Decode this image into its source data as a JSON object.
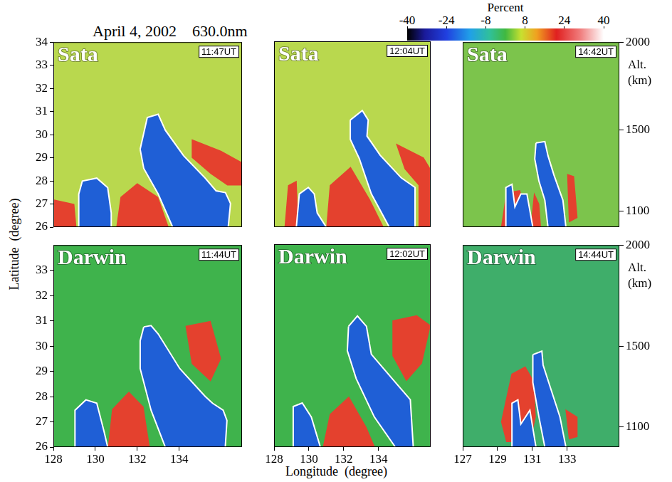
{
  "chart_data": {
    "type": "map",
    "title": "April 4, 2002    630.0nm",
    "x_label": "Longitude  (degree)",
    "y_label": "Latitude  (degree)",
    "y2_label": "Alt. (km)",
    "colorbar": {
      "title": "Percent",
      "range": [
        -40,
        40
      ],
      "ticks": [
        -40,
        -24,
        -8,
        8,
        24,
        40
      ]
    },
    "panels": [
      {
        "title": "Sata",
        "time": "11:47UT",
        "color": "#b9d84e",
        "xlim": [
          128,
          137
        ],
        "ylim": [
          26,
          34
        ],
        "yticks": [
          26,
          27,
          28,
          29,
          30,
          31,
          32,
          33,
          34
        ],
        "contours": [
          [
            [
              132.14,
              29.37
            ],
            [
              132.48,
              30.74
            ],
            [
              133.0,
              30.88
            ],
            [
              133.34,
              30.19
            ],
            [
              134.21,
              29.09
            ],
            [
              135.24,
              28.12
            ],
            [
              135.76,
              27.57
            ],
            [
              136.21,
              27.49
            ],
            [
              136.45,
              27.02
            ],
            [
              136.34,
              26.0
            ],
            [
              133.69,
              26.0
            ],
            [
              133.0,
              27.43
            ],
            [
              132.31,
              28.54
            ]
          ],
          [
            [
              129.21,
              26.0
            ],
            [
              129.21,
              27.43
            ],
            [
              129.38,
              27.99
            ],
            [
              130.07,
              28.12
            ],
            [
              130.59,
              27.71
            ],
            [
              130.76,
              26.61
            ],
            [
              130.76,
              26.0
            ]
          ]
        ],
        "enhancements": [
          [
            [
              131.0,
              26.0
            ],
            [
              131.2,
              27.3
            ],
            [
              132.0,
              27.9
            ],
            [
              133.0,
              27.3
            ],
            [
              133.5,
              26.0
            ]
          ],
          [
            [
              134.6,
              29.8
            ],
            [
              136.0,
              29.3
            ],
            [
              137.0,
              28.8
            ],
            [
              137.0,
              27.8
            ],
            [
              136.3,
              27.8
            ],
            [
              135.5,
              28.3
            ],
            [
              134.6,
              29.0
            ]
          ],
          [
            [
              128.0,
              26.0
            ],
            [
              128.0,
              27.2
            ],
            [
              129.0,
              27.0
            ],
            [
              129.1,
              26.0
            ]
          ]
        ]
      },
      {
        "title": "Sata",
        "time": "12:04UT",
        "color": "#b9d84e",
        "xlim": [
          128,
          137
        ],
        "ylim": [
          26,
          34
        ],
        "contours": [
          [
            [
              132.38,
              30.61
            ],
            [
              133.07,
              31.02
            ],
            [
              133.41,
              30.61
            ],
            [
              133.34,
              29.92
            ],
            [
              134.1,
              29.09
            ],
            [
              135.31,
              28.12
            ],
            [
              136.1,
              27.71
            ],
            [
              136.1,
              26.0
            ],
            [
              134.62,
              26.0
            ],
            [
              133.59,
              27.43
            ],
            [
              132.9,
              28.95
            ],
            [
              132.38,
              29.78
            ]
          ],
          [
            [
              129.28,
              26.0
            ],
            [
              129.45,
              27.43
            ],
            [
              129.97,
              27.71
            ],
            [
              130.31,
              27.43
            ],
            [
              130.48,
              26.61
            ],
            [
              131.0,
              26.0
            ]
          ]
        ],
        "enhancements": [
          [
            [
              131.0,
              26.0
            ],
            [
              131.2,
              27.8
            ],
            [
              132.4,
              28.6
            ],
            [
              133.5,
              27.2
            ],
            [
              134.3,
              26.0
            ]
          ],
          [
            [
              135.0,
              29.6
            ],
            [
              136.6,
              29.0
            ],
            [
              137.0,
              28.5
            ],
            [
              137.0,
              26.0
            ],
            [
              136.3,
              26.0
            ],
            [
              136.3,
              27.8
            ],
            [
              135.5,
              28.5
            ]
          ],
          [
            [
              128.6,
              26.0
            ],
            [
              128.8,
              27.8
            ],
            [
              129.3,
              28.0
            ],
            [
              129.4,
              26.0
            ]
          ]
        ]
      },
      {
        "title": "Sata",
        "time": "14:42UT",
        "color": "#7cc44c",
        "xlim": [
          127,
          136
        ],
        "ylim": [
          26,
          34
        ],
        "alt_ticks": [
          {
            "value": 34,
            "label": "2000"
          },
          {
            "value": 30.2,
            "label": "1500"
          },
          {
            "value": 26.7,
            "label": "1100"
          }
        ],
        "contours": [
          [
            [
              131.21,
              29.64
            ],
            [
              131.72,
              29.7
            ],
            [
              131.9,
              29.09
            ],
            [
              132.24,
              28.26
            ],
            [
              132.76,
              27.16
            ],
            [
              132.93,
              26.0
            ],
            [
              131.9,
              26.0
            ],
            [
              131.72,
              27.16
            ],
            [
              131.38,
              27.99
            ],
            [
              131.14,
              28.95
            ]
          ],
          [
            [
              129.48,
              26.0
            ],
            [
              129.48,
              27.71
            ],
            [
              129.83,
              27.85
            ],
            [
              130.0,
              26.88
            ],
            [
              130.34,
              27.43
            ],
            [
              130.69,
              27.43
            ],
            [
              131.03,
              26.0
            ]
          ]
        ],
        "enhancements": [
          [
            [
              133.0,
              28.3
            ],
            [
              133.4,
              28.2
            ],
            [
              133.6,
              26.4
            ],
            [
              133.1,
              26.2
            ]
          ],
          [
            [
              129.2,
              26.0
            ],
            [
              129.5,
              27.5
            ],
            [
              130.3,
              27.6
            ],
            [
              130.8,
              26.0
            ]
          ],
          [
            [
              130.9,
              26.0
            ],
            [
              131.1,
              27.5
            ],
            [
              131.4,
              27.0
            ],
            [
              131.5,
              26.0
            ]
          ]
        ]
      },
      {
        "title": "Darwin",
        "time": "11:44UT",
        "color": "#3fb34c",
        "xlim": [
          128,
          137
        ],
        "ylim": [
          26,
          34
        ],
        "xticks": [
          128,
          130,
          132,
          134
        ],
        "yticks": [
          26,
          27,
          28,
          29,
          30,
          31,
          32,
          33
        ],
        "contours": [
          [
            [
              132.31,
              30.76
            ],
            [
              132.66,
              30.81
            ],
            [
              133.0,
              30.48
            ],
            [
              134.03,
              29.11
            ],
            [
              135.24,
              28.01
            ],
            [
              135.59,
              27.74
            ],
            [
              136.1,
              27.46
            ],
            [
              136.28,
              27.05
            ],
            [
              136.2,
              26.0
            ],
            [
              133.34,
              26.0
            ],
            [
              132.66,
              27.46
            ],
            [
              132.14,
              29.11
            ],
            [
              132.14,
              30.21
            ]
          ],
          [
            [
              129.03,
              26.0
            ],
            [
              129.03,
              27.46
            ],
            [
              129.55,
              27.87
            ],
            [
              130.07,
              27.74
            ],
            [
              130.41,
              26.64
            ],
            [
              130.59,
              26.0
            ]
          ]
        ],
        "enhancements": [
          [
            [
              134.3,
              30.8
            ],
            [
              135.5,
              31.0
            ],
            [
              136.0,
              29.5
            ],
            [
              135.5,
              28.6
            ],
            [
              134.6,
              29.3
            ]
          ],
          [
            [
              130.6,
              26.0
            ],
            [
              130.8,
              27.5
            ],
            [
              131.6,
              28.2
            ],
            [
              132.3,
              27.6
            ],
            [
              132.6,
              26.0
            ]
          ]
        ]
      },
      {
        "title": "Darwin",
        "time": "12:02UT",
        "color": "#3fb34c",
        "xlim": [
          128,
          137
        ],
        "ylim": [
          26,
          34
        ],
        "xticks": [
          128,
          130,
          132,
          134
        ],
        "contours": [
          [
            [
              132.28,
              30.76
            ],
            [
              132.79,
              31.17
            ],
            [
              133.31,
              30.76
            ],
            [
              133.59,
              29.66
            ],
            [
              134.79,
              28.7
            ],
            [
              135.83,
              27.87
            ],
            [
              136.0,
              26.0
            ],
            [
              134.97,
              26.0
            ],
            [
              133.76,
              27.19
            ],
            [
              132.72,
              28.7
            ],
            [
              132.21,
              29.8
            ]
          ],
          [
            [
              129.1,
              26.0
            ],
            [
              129.1,
              27.6
            ],
            [
              129.62,
              27.74
            ],
            [
              130.14,
              27.19
            ],
            [
              130.66,
              26.0
            ]
          ]
        ],
        "enhancements": [
          [
            [
              134.8,
              31.0
            ],
            [
              136.2,
              31.2
            ],
            [
              137.0,
              30.8
            ],
            [
              136.5,
              29.3
            ],
            [
              135.6,
              28.6
            ],
            [
              134.8,
              29.6
            ]
          ],
          [
            [
              130.8,
              26.0
            ],
            [
              131.2,
              27.3
            ],
            [
              132.3,
              28.0
            ],
            [
              133.3,
              26.8
            ],
            [
              133.8,
              26.0
            ]
          ]
        ]
      },
      {
        "title": "Darwin",
        "time": "14:44UT",
        "color": "#3fae6a",
        "xlim": [
          127,
          136
        ],
        "ylim": [
          26,
          34
        ],
        "xticks": [
          127,
          129,
          131,
          133
        ],
        "alt_ticks": [
          {
            "value": 34,
            "label": "2000"
          },
          {
            "value": 30.0,
            "label": "1500"
          },
          {
            "value": 26.8,
            "label": "1100"
          }
        ],
        "contours": [
          [
            [
              131.03,
              29.66
            ],
            [
              131.55,
              29.8
            ],
            [
              131.62,
              29.25
            ],
            [
              132.07,
              28.29
            ],
            [
              132.59,
              27.19
            ],
            [
              132.93,
              26.0
            ],
            [
              131.72,
              26.0
            ],
            [
              131.38,
              27.19
            ],
            [
              131.03,
              28.56
            ]
          ],
          [
            [
              129.83,
              26.0
            ],
            [
              129.83,
              27.74
            ],
            [
              130.17,
              27.87
            ],
            [
              130.34,
              26.91
            ],
            [
              130.86,
              27.46
            ],
            [
              131.21,
              26.0
            ]
          ]
        ],
        "enhancements": [
          [
            [
              129.2,
              27.0
            ],
            [
              129.8,
              28.9
            ],
            [
              130.6,
              29.2
            ],
            [
              131.1,
              28.6
            ],
            [
              131.2,
              27.2
            ],
            [
              130.9,
              26.2
            ],
            [
              129.5,
              26.2
            ]
          ],
          [
            [
              132.9,
              27.5
            ],
            [
              133.6,
              27.2
            ],
            [
              133.6,
              26.4
            ],
            [
              133.1,
              26.3
            ]
          ]
        ]
      }
    ]
  }
}
